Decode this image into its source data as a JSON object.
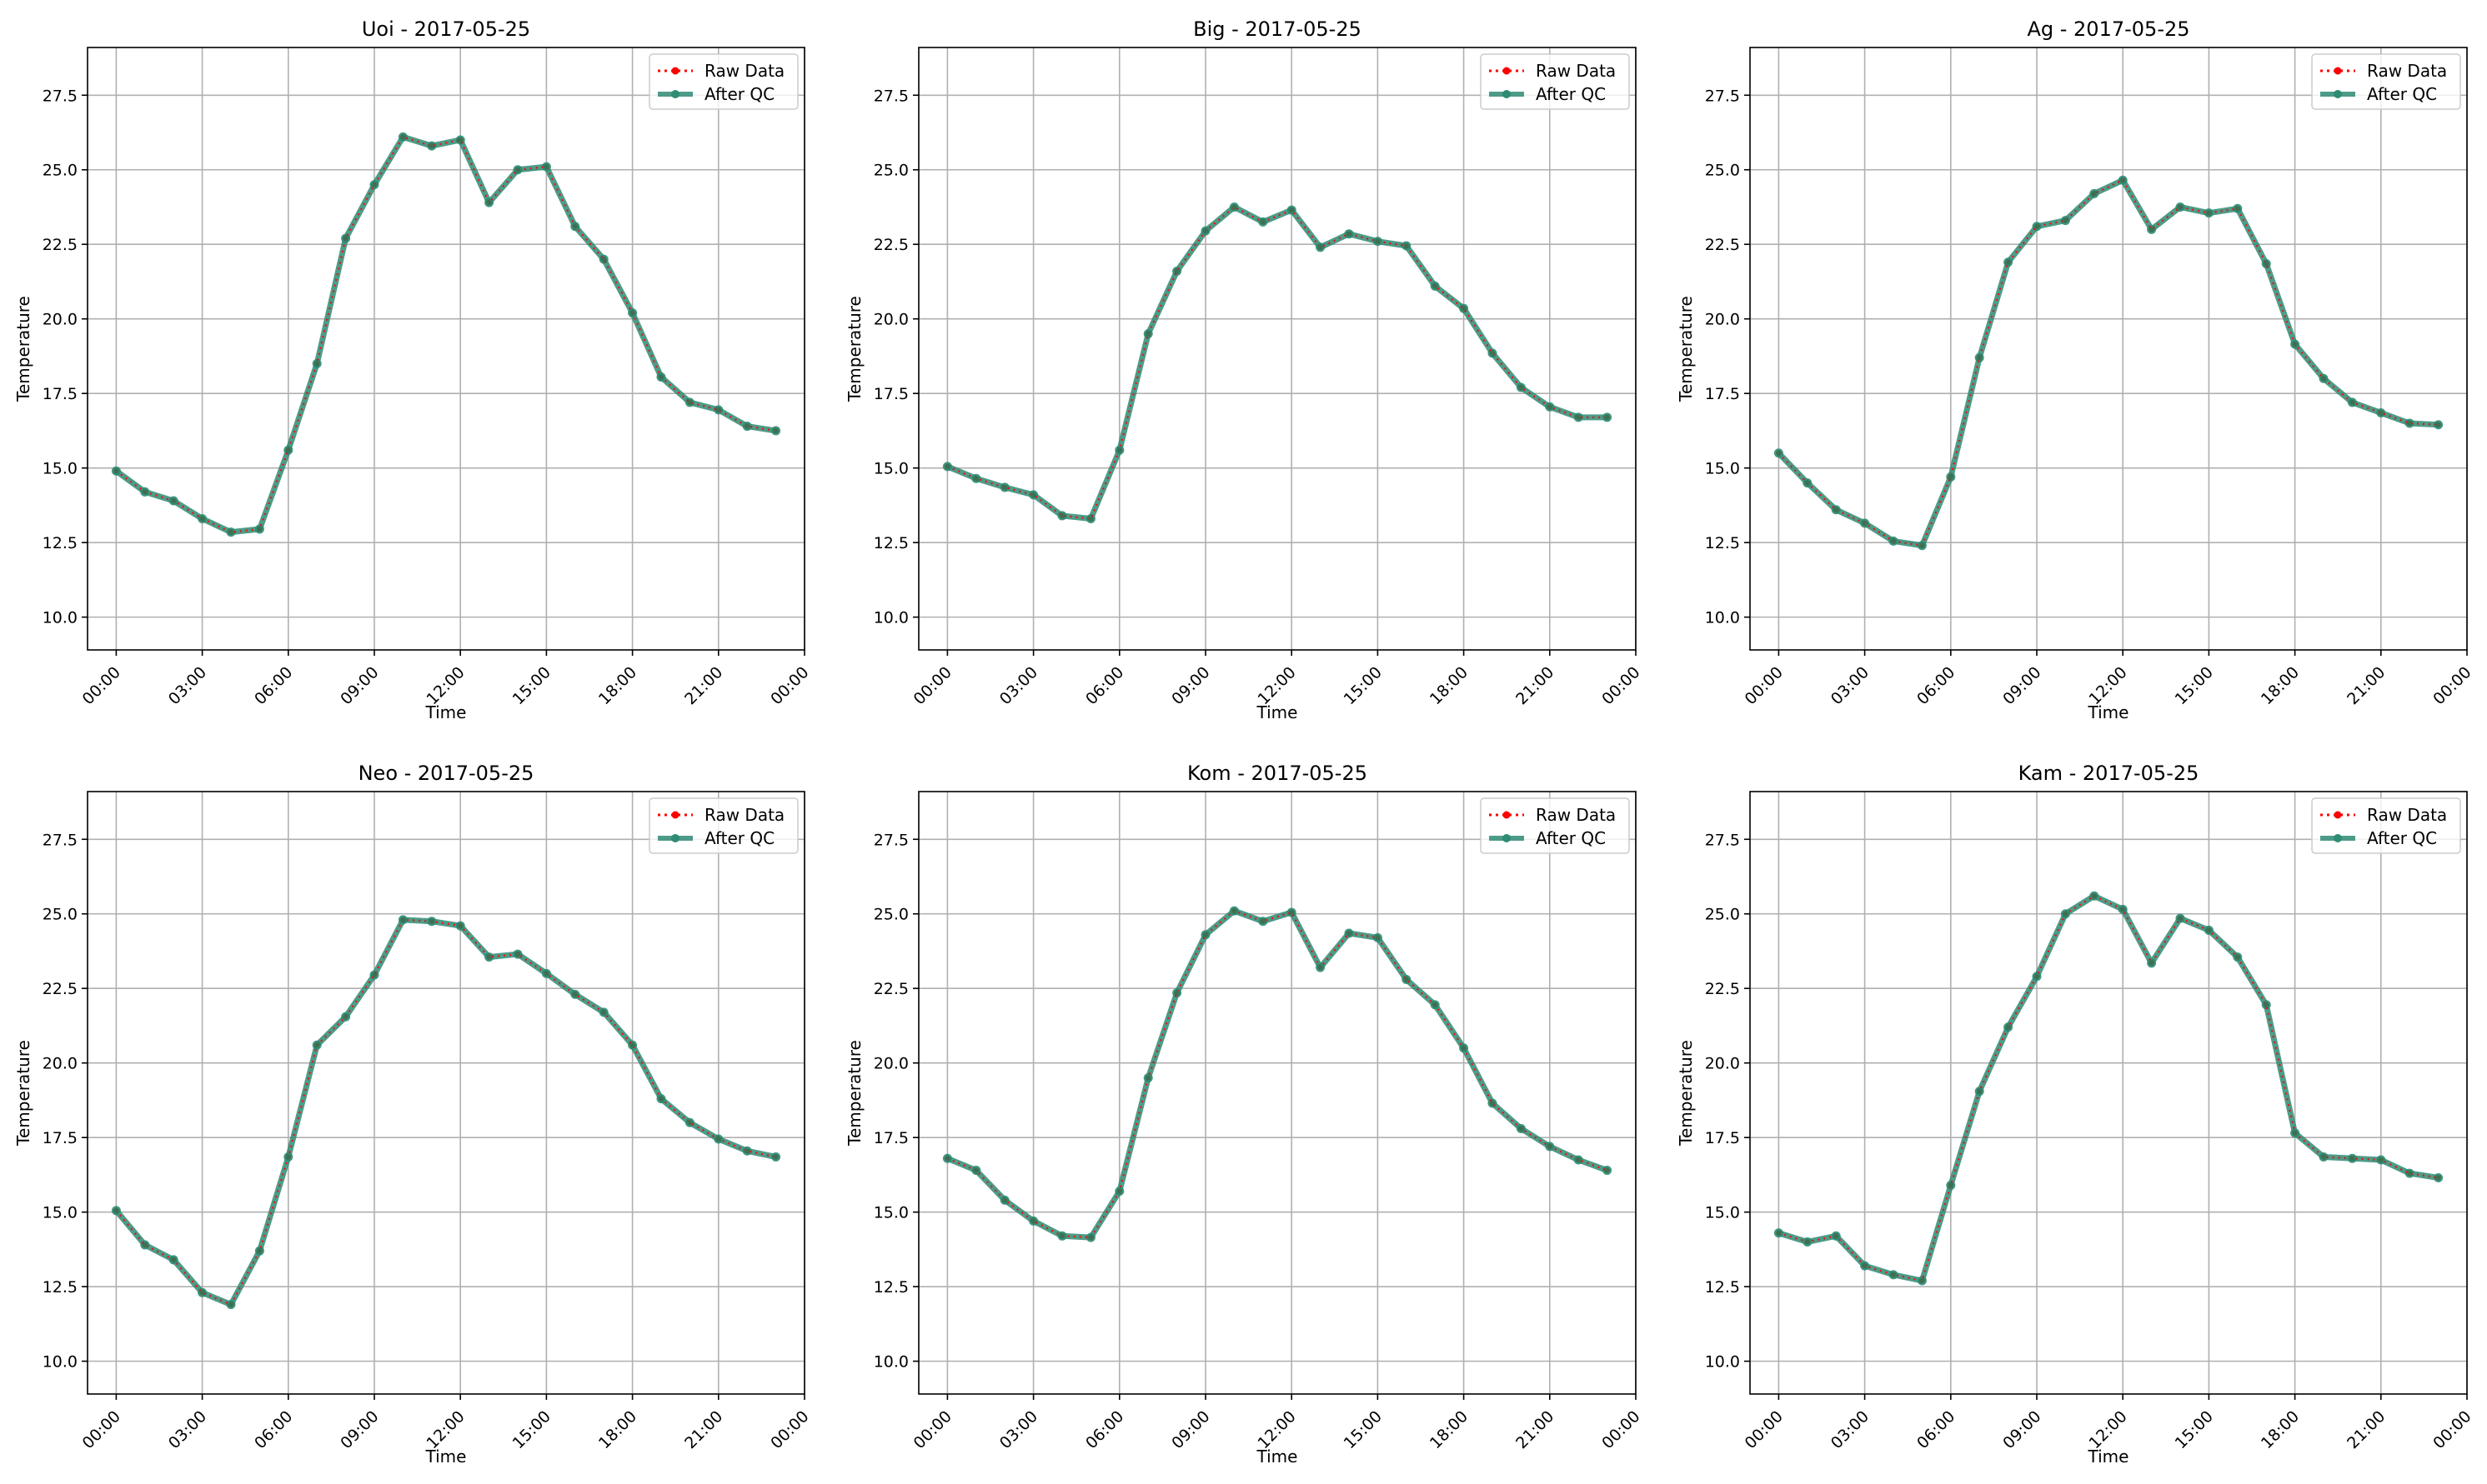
{
  "figure": {
    "xlabel": "Time",
    "ylabel": "Temperature",
    "y_ticks": [
      "10.0",
      "12.5",
      "15.0",
      "17.5",
      "20.0",
      "22.5",
      "25.0",
      "27.5"
    ],
    "x_ticks": [
      "00:00",
      "03:00",
      "06:00",
      "09:00",
      "12:00",
      "15:00",
      "18:00",
      "21:00",
      "00:00"
    ],
    "legend": {
      "raw_label": "Raw Data",
      "qc_label": "After QC"
    },
    "colors": {
      "raw": "#ff0000",
      "qc": "#2e8b74",
      "grid": "#b0b0b0"
    }
  },
  "chart_data": [
    {
      "type": "line",
      "title": "Uoi - 2017-05-25",
      "xlabel": "Time",
      "ylabel": "Temperature",
      "x_unit": "hour of day",
      "x": [
        0,
        1,
        2,
        3,
        4,
        5,
        6,
        7,
        8,
        9,
        10,
        11,
        12,
        13,
        14,
        15,
        16,
        17,
        18,
        19,
        20,
        21,
        22,
        23
      ],
      "xlim": [
        -1,
        24
      ],
      "ylim": [
        8.9,
        29.1
      ],
      "grid": true,
      "legend_position": "top-right",
      "series": [
        {
          "name": "Raw Data",
          "style": "dotted red with markers",
          "values": [
            14.9,
            14.2,
            13.9,
            13.3,
            12.85,
            12.95,
            15.6,
            18.5,
            22.7,
            24.5,
            26.1,
            25.8,
            26.0,
            23.9,
            25.0,
            25.1,
            23.1,
            22.0,
            20.2,
            18.05,
            17.2,
            16.95,
            16.4,
            16.25
          ]
        },
        {
          "name": "After QC",
          "style": "solid green with markers",
          "values": [
            14.9,
            14.2,
            13.9,
            13.3,
            12.85,
            12.95,
            15.6,
            18.5,
            22.7,
            24.5,
            26.1,
            25.8,
            26.0,
            23.9,
            25.0,
            25.1,
            23.1,
            22.0,
            20.2,
            18.05,
            17.2,
            16.95,
            16.4,
            16.25
          ]
        }
      ]
    },
    {
      "type": "line",
      "title": "Big - 2017-05-25",
      "xlabel": "Time",
      "ylabel": "Temperature",
      "x_unit": "hour of day",
      "x": [
        0,
        1,
        2,
        3,
        4,
        5,
        6,
        7,
        8,
        9,
        10,
        11,
        12,
        13,
        14,
        15,
        16,
        17,
        18,
        19,
        20,
        21,
        22,
        23
      ],
      "xlim": [
        -1,
        24
      ],
      "ylim": [
        8.9,
        29.1
      ],
      "grid": true,
      "legend_position": "top-right",
      "series": [
        {
          "name": "Raw Data",
          "style": "dotted red with markers",
          "values": [
            15.05,
            14.65,
            14.35,
            14.1,
            13.4,
            13.3,
            15.6,
            19.5,
            21.6,
            22.95,
            23.75,
            23.25,
            23.65,
            22.4,
            22.85,
            22.6,
            22.45,
            21.1,
            20.35,
            18.85,
            17.7,
            17.05,
            16.7,
            16.7
          ]
        },
        {
          "name": "After QC",
          "style": "solid green with markers",
          "values": [
            15.05,
            14.65,
            14.35,
            14.1,
            13.4,
            13.3,
            15.6,
            19.5,
            21.6,
            22.95,
            23.75,
            23.25,
            23.65,
            22.4,
            22.85,
            22.6,
            22.45,
            21.1,
            20.35,
            18.85,
            17.7,
            17.05,
            16.7,
            16.7
          ]
        }
      ]
    },
    {
      "type": "line",
      "title": "Ag - 2017-05-25",
      "xlabel": "Time",
      "ylabel": "Temperature",
      "x_unit": "hour of day",
      "x": [
        0,
        1,
        2,
        3,
        4,
        5,
        6,
        7,
        8,
        9,
        10,
        11,
        12,
        13,
        14,
        15,
        16,
        17,
        18,
        19,
        20,
        21,
        22,
        23
      ],
      "xlim": [
        -1,
        24
      ],
      "ylim": [
        8.9,
        29.1
      ],
      "grid": true,
      "legend_position": "top-right",
      "series": [
        {
          "name": "Raw Data",
          "style": "dotted red with markers",
          "values": [
            15.5,
            14.5,
            13.6,
            13.15,
            12.55,
            12.4,
            14.7,
            18.7,
            21.9,
            23.1,
            23.3,
            24.2,
            24.65,
            23.0,
            23.75,
            23.55,
            23.7,
            21.85,
            19.15,
            18.0,
            17.2,
            16.85,
            16.5,
            16.45
          ]
        },
        {
          "name": "After QC",
          "style": "solid green with markers",
          "values": [
            15.5,
            14.5,
            13.6,
            13.15,
            12.55,
            12.4,
            14.7,
            18.7,
            21.9,
            23.1,
            23.3,
            24.2,
            24.65,
            23.0,
            23.75,
            23.55,
            23.7,
            21.85,
            19.15,
            18.0,
            17.2,
            16.85,
            16.5,
            16.45
          ]
        }
      ]
    },
    {
      "type": "line",
      "title": "Neo - 2017-05-25",
      "xlabel": "Time",
      "ylabel": "Temperature",
      "x_unit": "hour of day",
      "x": [
        0,
        1,
        2,
        3,
        4,
        5,
        6,
        7,
        8,
        9,
        10,
        11,
        12,
        13,
        14,
        15,
        16,
        17,
        18,
        19,
        20,
        21,
        22,
        23
      ],
      "xlim": [
        -1,
        24
      ],
      "ylim": [
        8.9,
        29.1
      ],
      "grid": true,
      "legend_position": "top-right",
      "series": [
        {
          "name": "Raw Data",
          "style": "dotted red with markers",
          "values": [
            15.05,
            13.9,
            13.4,
            12.3,
            11.9,
            13.7,
            16.85,
            20.6,
            21.55,
            22.95,
            24.8,
            24.75,
            24.6,
            23.55,
            23.65,
            23.0,
            22.3,
            21.7,
            20.6,
            18.8,
            18.0,
            17.45,
            17.05,
            16.85
          ]
        },
        {
          "name": "After QC",
          "style": "solid green with markers",
          "values": [
            15.05,
            13.9,
            13.4,
            12.3,
            11.9,
            13.7,
            16.85,
            20.6,
            21.55,
            22.95,
            24.8,
            24.75,
            24.6,
            23.55,
            23.65,
            23.0,
            22.3,
            21.7,
            20.6,
            18.8,
            18.0,
            17.45,
            17.05,
            16.85
          ]
        }
      ]
    },
    {
      "type": "line",
      "title": "Kom - 2017-05-25",
      "xlabel": "Time",
      "ylabel": "Temperature",
      "x_unit": "hour of day",
      "x": [
        0,
        1,
        2,
        3,
        4,
        5,
        6,
        7,
        8,
        9,
        10,
        11,
        12,
        13,
        14,
        15,
        16,
        17,
        18,
        19,
        20,
        21,
        22,
        23
      ],
      "xlim": [
        -1,
        24
      ],
      "ylim": [
        8.9,
        29.1
      ],
      "grid": true,
      "legend_position": "top-right",
      "series": [
        {
          "name": "Raw Data",
          "style": "dotted red with markers",
          "values": [
            16.8,
            16.4,
            15.4,
            14.7,
            14.2,
            14.15,
            15.7,
            19.5,
            22.35,
            24.3,
            25.1,
            24.75,
            25.05,
            23.2,
            24.35,
            24.2,
            22.8,
            21.95,
            20.5,
            18.65,
            17.8,
            17.2,
            16.75,
            16.4
          ]
        },
        {
          "name": "After QC",
          "style": "solid green with markers",
          "values": [
            16.8,
            16.4,
            15.4,
            14.7,
            14.2,
            14.15,
            15.7,
            19.5,
            22.35,
            24.3,
            25.1,
            24.75,
            25.05,
            23.2,
            24.35,
            24.2,
            22.8,
            21.95,
            20.5,
            18.65,
            17.8,
            17.2,
            16.75,
            16.4
          ]
        }
      ]
    },
    {
      "type": "line",
      "title": "Kam - 2017-05-25",
      "xlabel": "Time",
      "ylabel": "Temperature",
      "x_unit": "hour of day",
      "x": [
        0,
        1,
        2,
        3,
        4,
        5,
        6,
        7,
        8,
        9,
        10,
        11,
        12,
        13,
        14,
        15,
        16,
        17,
        18,
        19,
        20,
        21,
        22,
        23
      ],
      "xlim": [
        -1,
        24
      ],
      "ylim": [
        8.9,
        29.1
      ],
      "grid": true,
      "legend_position": "top-right",
      "series": [
        {
          "name": "Raw Data",
          "style": "dotted red with markers",
          "values": [
            14.3,
            14.0,
            14.2,
            13.2,
            12.9,
            12.7,
            15.9,
            19.05,
            21.2,
            22.9,
            25.0,
            25.6,
            25.15,
            23.35,
            24.85,
            24.45,
            23.55,
            21.95,
            17.65,
            16.85,
            16.8,
            16.75,
            16.3,
            16.15
          ]
        },
        {
          "name": "After QC",
          "style": "solid green with markers",
          "values": [
            14.3,
            14.0,
            14.2,
            13.2,
            12.9,
            12.7,
            15.9,
            19.05,
            21.2,
            22.9,
            25.0,
            25.6,
            25.15,
            23.35,
            24.85,
            24.45,
            23.55,
            21.95,
            17.65,
            16.85,
            16.8,
            16.75,
            16.3,
            16.15
          ]
        }
      ]
    }
  ]
}
